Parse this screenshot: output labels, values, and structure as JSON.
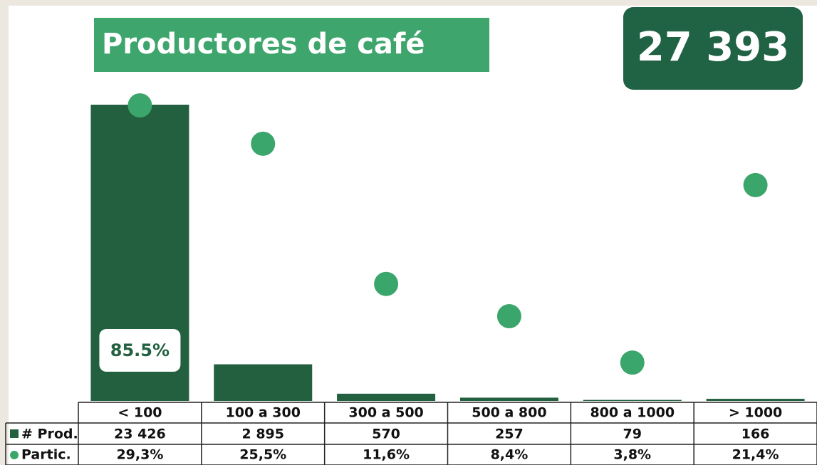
{
  "chart_data": {
    "type": "bar",
    "title": "Productores de café",
    "total_label": "27 393",
    "annotation": "85.5%",
    "categories": [
      "< 100",
      "100 a 300",
      "300 a 500",
      "500 a 800",
      "800 a 1000",
      "> 1000"
    ],
    "series": [
      {
        "name": "# Prod.",
        "color": "#22603f",
        "values": [
          23426,
          2895,
          570,
          257,
          79,
          166
        ],
        "value_labels": [
          "23 426",
          "2 895",
          "570",
          "257",
          "79",
          "166"
        ]
      },
      {
        "name": "Partic.",
        "color": "#3ba66b",
        "type": "scatter",
        "values": [
          29.3,
          25.5,
          11.6,
          8.4,
          3.8,
          21.4
        ],
        "value_labels": [
          "29,3%",
          "25,5%",
          "11,6%",
          "8,4%",
          "3,8%",
          "21,4%"
        ]
      }
    ]
  }
}
